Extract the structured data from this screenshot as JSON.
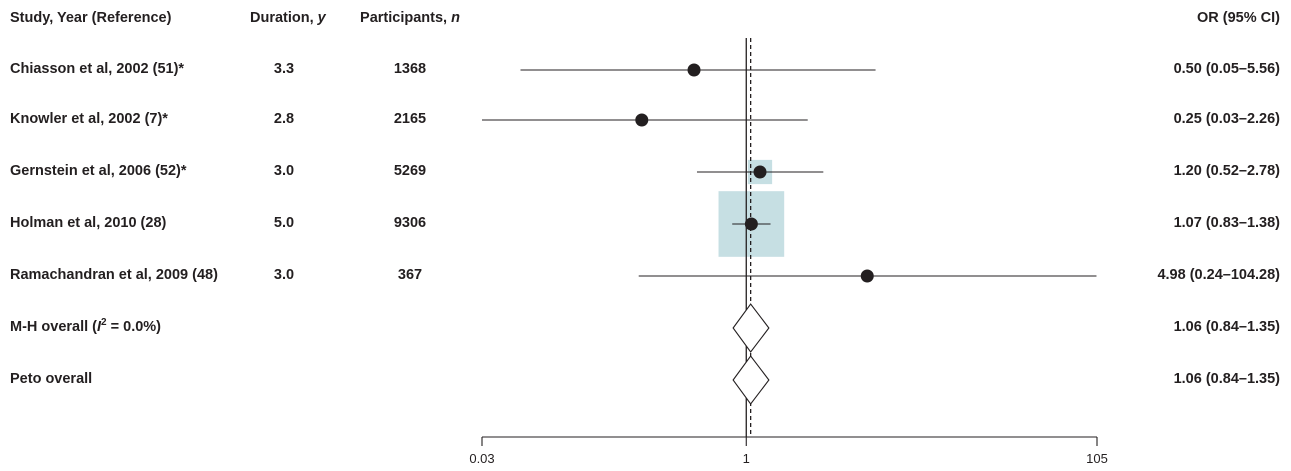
{
  "chart_data": {
    "type": "forest",
    "columns": {
      "study": "Study, Year (Reference)",
      "duration_prefix": "Duration, ",
      "duration_unit": "y",
      "participants_prefix": "Participants, ",
      "participants_unit": "n",
      "or": "OR (95% CI)"
    },
    "studies": [
      {
        "study": "Chiasson et al, 2002 (51)*",
        "duration": "3.3",
        "participants": "1368",
        "or": 0.5,
        "lower": 0.05,
        "upper": 5.56,
        "or_label": "0.50 (0.05–5.56)",
        "weight_box": false
      },
      {
        "study": "Knowler et al, 2002 (7)*",
        "duration": "2.8",
        "participants": "2165",
        "or": 0.25,
        "lower": 0.03,
        "upper": 2.26,
        "or_label": "0.25 (0.03–2.26)",
        "weight_box": false
      },
      {
        "study": "Gernstein et al, 2006 (52)*",
        "duration": "3.0",
        "participants": "5269",
        "or": 1.2,
        "lower": 0.52,
        "upper": 2.78,
        "or_label": "1.20 (0.52–2.78)",
        "weight_box": true,
        "weight": 0.12
      },
      {
        "study": "Holman et al, 2010 (28)",
        "duration": "5.0",
        "participants": "9306",
        "or": 1.07,
        "lower": 0.83,
        "upper": 1.38,
        "or_label": "1.07 (0.83–1.38)",
        "weight_box": true,
        "weight": 0.88
      },
      {
        "study": "Ramachandran et al, 2009 (48)",
        "duration": "3.0",
        "participants": "367",
        "or": 4.98,
        "lower": 0.24,
        "upper": 104.28,
        "or_label": "4.98 (0.24–104.28)",
        "weight_box": false
      }
    ],
    "overall": [
      {
        "label_prefix": "M-H overall (",
        "label_i": "I",
        "label_sup": "2",
        "label_suffix": " = 0.0%)",
        "or": 1.06,
        "lower": 0.84,
        "upper": 1.35,
        "or_label": "1.06 (0.84–1.35)"
      },
      {
        "label": "Peto overall",
        "or": 1.06,
        "lower": 0.84,
        "upper": 1.35,
        "or_label": "1.06 (0.84–1.35)"
      }
    ],
    "x_axis": {
      "scale": "log",
      "min": 0.03,
      "max": 105,
      "ticks": [
        0.03,
        1,
        105
      ],
      "tick_labels": [
        "0.03",
        "1",
        "105"
      ]
    },
    "reference_line": 1,
    "overall_line": 1.06,
    "colors": {
      "ink": "#231f20",
      "weight_box": "#c6dfe3"
    }
  }
}
